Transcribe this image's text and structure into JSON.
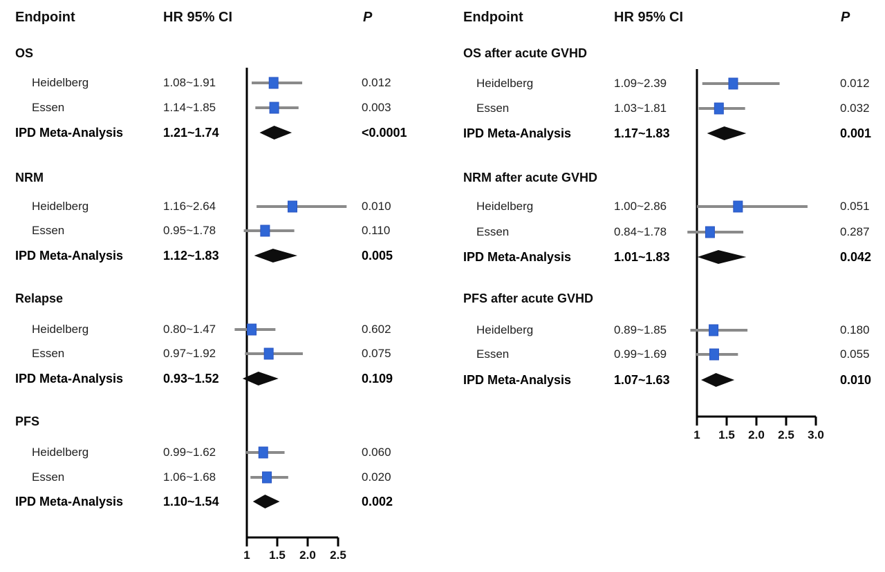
{
  "figure": {
    "background": "#ffffff"
  },
  "colors": {
    "point_marker_fill": "#3067d6",
    "point_marker_border": "#2a55c2",
    "ci_line": "#8a8a8a",
    "summary_diamond": "#0d0d0d",
    "axis": "#000000",
    "text": "#1b1b1b"
  },
  "chart_data": {
    "type": "forest",
    "scale": "linear",
    "reference_line": 1,
    "panels": [
      {
        "id": "left",
        "headers": {
          "endpoint": "Endpoint",
          "hr_ci": "HR 95% CI",
          "p": "P"
        },
        "axis": {
          "tick_labels": [
            "1",
            "1.5",
            "2.0",
            "2.5"
          ],
          "tick_values": [
            1,
            1.5,
            2.0,
            2.5
          ],
          "range": [
            1,
            2.7
          ]
        },
        "sections": [
          {
            "title": "OS",
            "rows": [
              {
                "label": "Heidelberg",
                "ci_text": "1.08~1.91",
                "lo": 1.08,
                "hi": 1.91,
                "point": 1.44,
                "p": "0.012",
                "kind": "study"
              },
              {
                "label": "Essen",
                "ci_text": "1.14~1.85",
                "lo": 1.14,
                "hi": 1.85,
                "point": 1.45,
                "p": "0.003",
                "kind": "study"
              },
              {
                "label": "IPD Meta-Analysis",
                "ci_text": "1.21~1.74",
                "lo": 1.21,
                "hi": 1.74,
                "point": 1.45,
                "p": "<0.0001",
                "kind": "summary"
              }
            ]
          },
          {
            "title": "NRM",
            "rows": [
              {
                "label": "Heidelberg",
                "ci_text": "1.16~2.64",
                "lo": 1.16,
                "hi": 2.64,
                "point": 1.75,
                "p": "0.010",
                "kind": "study"
              },
              {
                "label": "Essen",
                "ci_text": "0.95~1.78",
                "lo": 0.95,
                "hi": 1.78,
                "point": 1.3,
                "p": "0.110",
                "kind": "study"
              },
              {
                "label": "IPD Meta-Analysis",
                "ci_text": "1.12~1.83",
                "lo": 1.12,
                "hi": 1.83,
                "point": 1.43,
                "p": "0.005",
                "kind": "summary"
              }
            ]
          },
          {
            "title": "Relapse",
            "rows": [
              {
                "label": "Heidelberg",
                "ci_text": "0.80~1.47",
                "lo": 0.8,
                "hi": 1.47,
                "point": 1.08,
                "p": "0.602",
                "kind": "study"
              },
              {
                "label": "Essen",
                "ci_text": "0.97~1.92",
                "lo": 0.97,
                "hi": 1.92,
                "point": 1.36,
                "p": "0.075",
                "kind": "study"
              },
              {
                "label": "IPD Meta-Analysis",
                "ci_text": "0.93~1.52",
                "lo": 0.93,
                "hi": 1.52,
                "point": 1.19,
                "p": "0.109",
                "kind": "summary"
              }
            ]
          },
          {
            "title": "PFS",
            "rows": [
              {
                "label": "Heidelberg",
                "ci_text": "0.99~1.62",
                "lo": 0.99,
                "hi": 1.62,
                "point": 1.27,
                "p": "0.060",
                "kind": "study"
              },
              {
                "label": "Essen",
                "ci_text": "1.06~1.68",
                "lo": 1.06,
                "hi": 1.68,
                "point": 1.33,
                "p": "0.020",
                "kind": "study"
              },
              {
                "label": "IPD Meta-Analysis",
                "ci_text": "1.10~1.54",
                "lo": 1.1,
                "hi": 1.54,
                "point": 1.3,
                "p": "0.002",
                "kind": "summary"
              }
            ]
          }
        ]
      },
      {
        "id": "right",
        "headers": {
          "endpoint": "Endpoint",
          "hr_ci": "HR 95% CI",
          "p": "P"
        },
        "axis": {
          "tick_labels": [
            "1",
            "1.5",
            "2.0",
            "2.5",
            "3.0"
          ],
          "tick_values": [
            1,
            1.5,
            2.0,
            2.5,
            3.0
          ],
          "range": [
            1,
            3.0
          ]
        },
        "sections": [
          {
            "title": "OS after acute GVHD",
            "rows": [
              {
                "label": "Heidelberg",
                "ci_text": "1.09~2.39",
                "lo": 1.09,
                "hi": 2.39,
                "point": 1.61,
                "p": "0.012",
                "kind": "study"
              },
              {
                "label": "Essen",
                "ci_text": "1.03~1.81",
                "lo": 1.03,
                "hi": 1.81,
                "point": 1.37,
                "p": "0.032",
                "kind": "study"
              },
              {
                "label": "IPD Meta-Analysis",
                "ci_text": "1.17~1.83",
                "lo": 1.17,
                "hi": 1.83,
                "point": 1.46,
                "p": "0.001",
                "kind": "summary"
              }
            ]
          },
          {
            "title": "NRM after acute GVHD",
            "rows": [
              {
                "label": "Heidelberg",
                "ci_text": "1.00~2.86",
                "lo": 1.0,
                "hi": 2.86,
                "point": 1.69,
                "p": "0.051",
                "kind": "study"
              },
              {
                "label": "Essen",
                "ci_text": "0.84~1.78",
                "lo": 0.84,
                "hi": 1.78,
                "point": 1.22,
                "p": "0.287",
                "kind": "study"
              },
              {
                "label": "IPD Meta-Analysis",
                "ci_text": "1.01~1.83",
                "lo": 1.01,
                "hi": 1.83,
                "point": 1.36,
                "p": "0.042",
                "kind": "summary"
              }
            ]
          },
          {
            "title": "PFS after acute GVHD",
            "rows": [
              {
                "label": "Heidelberg",
                "ci_text": "0.89~1.85",
                "lo": 0.89,
                "hi": 1.85,
                "point": 1.28,
                "p": "0.180",
                "kind": "study"
              },
              {
                "label": "Essen",
                "ci_text": "0.99~1.69",
                "lo": 0.99,
                "hi": 1.69,
                "point": 1.29,
                "p": "0.055",
                "kind": "study"
              },
              {
                "label": "IPD Meta-Analysis",
                "ci_text": "1.07~1.63",
                "lo": 1.07,
                "hi": 1.63,
                "point": 1.32,
                "p": "0.010",
                "kind": "summary"
              }
            ]
          }
        ]
      }
    ]
  }
}
